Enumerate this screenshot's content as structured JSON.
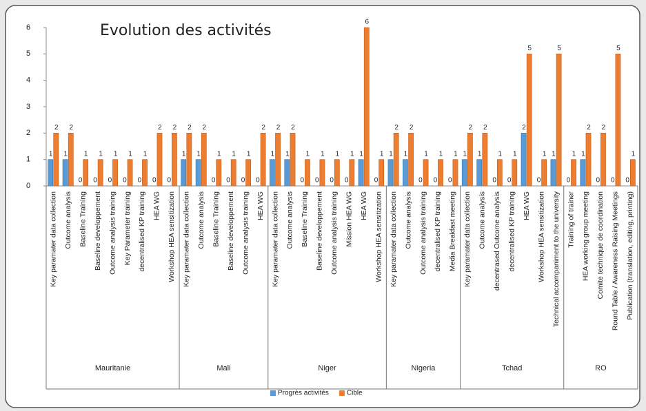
{
  "chart_data": {
    "type": "bar",
    "title": "Evolution des activités",
    "groups": [
      {
        "name": "Mauritanie",
        "categories": [
          "Key paramater data collection",
          "Outcome analysis",
          "Baseline Training",
          "Baseline developpement",
          "Outcome analysis training",
          "Key Parameter training",
          "decentralised KP training",
          "HEA WG",
          "Workshop HEA sensitization"
        ]
      },
      {
        "name": "Mali",
        "categories": [
          "Key paramater data collection",
          "Outcome analysis",
          "Baseline Training",
          "Baseline developpement",
          "Outcome analysis training",
          "HEA WG"
        ]
      },
      {
        "name": "Niger",
        "categories": [
          "Key paramater data collection",
          "Outcome analysis",
          "Baseline Training",
          "Baseline developpement",
          "Outcome analysis training",
          "Mission HEA WG",
          "HEA WG",
          "Workshop HEA sensitization"
        ]
      },
      {
        "name": "Nigeria",
        "categories": [
          "Key paramater data collection",
          "Outcome analysis",
          "Outcome analysis training",
          "decentralised KP training",
          "Media Breakfast meeting"
        ]
      },
      {
        "name": "Tchad",
        "categories": [
          "Key paramater data collection",
          "Outcome analysis",
          "decentrased Outcome analysis",
          "decentralised KP training",
          "HEA WG",
          "Workshop HEA sensitization",
          "Technical accompaniment to the university"
        ]
      },
      {
        "name": "RO",
        "categories": [
          "Training of trainer",
          "HEA working group meeting",
          "Comite technique de coordination",
          "Round Table / Awareness Raising Meetings",
          "Publication (translation, editing, printing)"
        ]
      }
    ],
    "series": [
      {
        "name": "Progrès activités",
        "color": "#5b9bd5",
        "values": [
          1,
          1,
          0,
          0,
          0,
          0,
          0,
          0,
          0,
          1,
          1,
          0,
          0,
          0,
          0,
          1,
          1,
          0,
          0,
          0,
          0,
          1,
          0,
          1,
          1,
          0,
          0,
          0,
          1,
          1,
          0,
          0,
          2,
          0,
          1,
          0,
          1,
          0,
          0,
          0
        ]
      },
      {
        "name": "Cible",
        "color": "#ed7d31",
        "values": [
          2,
          2,
          1,
          1,
          1,
          1,
          1,
          2,
          2,
          2,
          2,
          1,
          1,
          1,
          2,
          2,
          2,
          1,
          1,
          1,
          1,
          6,
          1,
          2,
          2,
          1,
          1,
          1,
          2,
          2,
          1,
          1,
          5,
          1,
          5,
          1,
          2,
          2,
          5,
          1
        ]
      }
    ],
    "ylim": [
      0,
      6
    ],
    "yticks": [
      0,
      1,
      2,
      3,
      4,
      5,
      6
    ],
    "legend": "bottom"
  }
}
